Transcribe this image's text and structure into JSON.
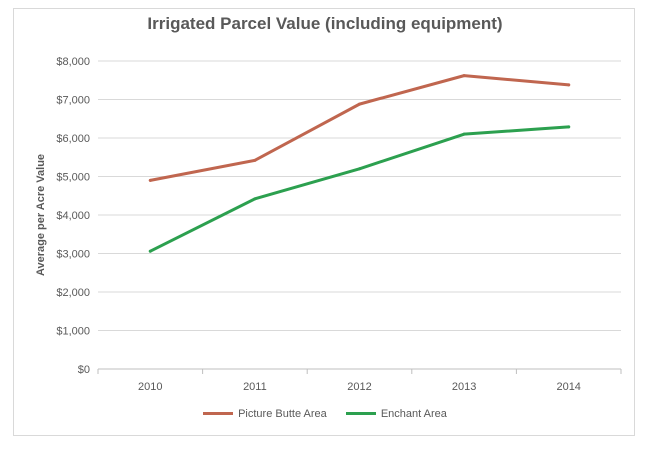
{
  "chart_data": {
    "type": "line",
    "title": "Irrigated Parcel Value (including equipment)",
    "xlabel": "",
    "ylabel": "Average per Acre Value",
    "categories": [
      "2010",
      "2011",
      "2012",
      "2013",
      "2014"
    ],
    "ylim": [
      0,
      8000
    ],
    "yticks": [
      0,
      1000,
      2000,
      3000,
      4000,
      5000,
      6000,
      7000,
      8000
    ],
    "ytick_labels": [
      "$0",
      "$1,000",
      "$2,000",
      "$3,000",
      "$4,000",
      "$5,000",
      "$6,000",
      "$7,000",
      "$8,000"
    ],
    "grid": true,
    "legend_position": "bottom",
    "series": [
      {
        "name": "Picture Butte Area",
        "color": "#c0664f",
        "values": [
          4900,
          5420,
          6880,
          7620,
          7380
        ]
      },
      {
        "name": "Enchant Area",
        "color": "#2ca04f",
        "values": [
          3060,
          4420,
          5200,
          6100,
          6290
        ]
      }
    ]
  }
}
